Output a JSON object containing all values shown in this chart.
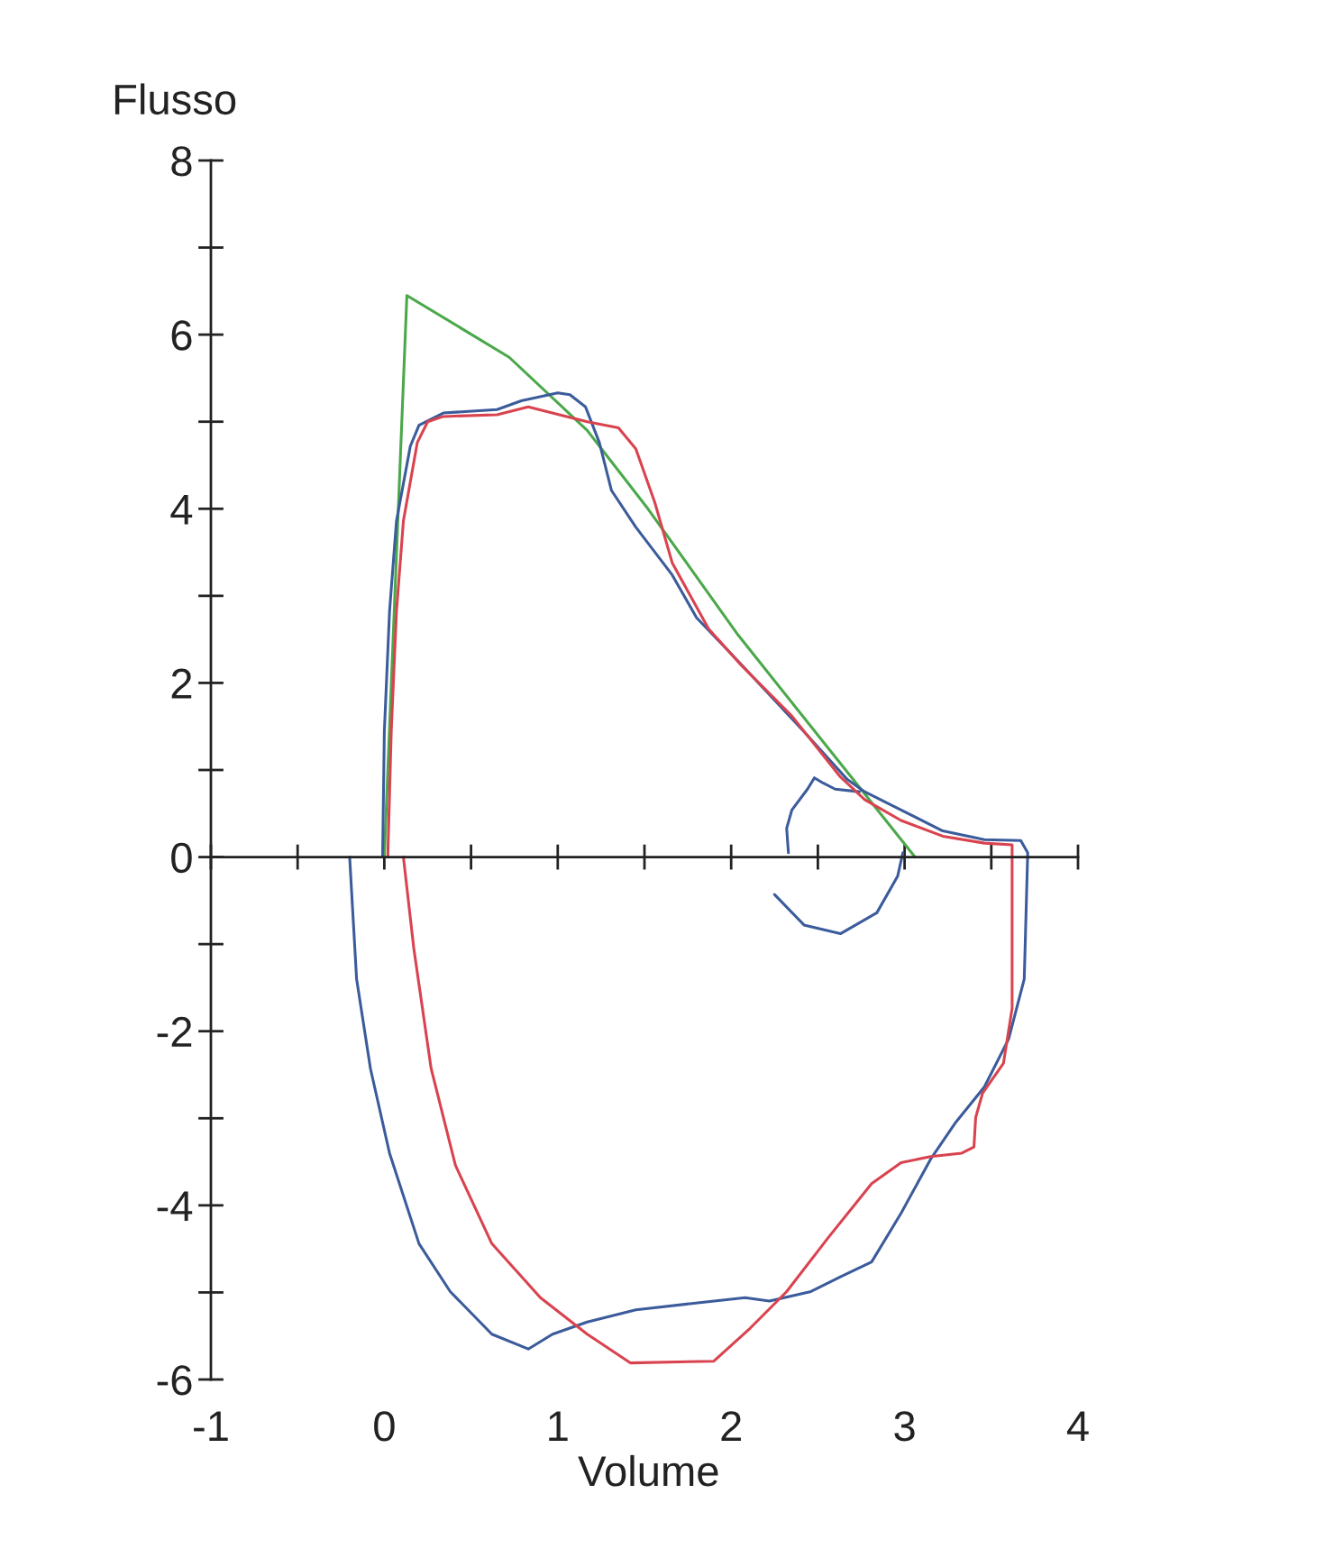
{
  "chart_data": {
    "type": "line",
    "xlabel": "Volume",
    "ylabel": "Flusso",
    "xlim": [
      -1,
      4
    ],
    "ylim": [
      -6,
      8
    ],
    "xticks": [
      -1,
      {
        "value": -0.5,
        "label": null
      },
      0,
      {
        "value": 0.5,
        "label": null
      },
      1,
      {
        "value": 1.5,
        "label": null
      },
      2,
      {
        "value": 2.5,
        "label": null
      },
      3,
      {
        "value": 3.5,
        "label": null
      },
      4
    ],
    "yticks": [
      -6,
      {
        "value": -5,
        "label": null
      },
      -4,
      {
        "value": -3,
        "label": null
      },
      -2,
      {
        "value": -1,
        "label": null
      },
      0,
      {
        "value": 1,
        "label": null
      },
      2,
      {
        "value": 3,
        "label": null
      },
      4,
      {
        "value": 5,
        "label": null
      },
      6,
      {
        "value": 7,
        "label": null
      },
      8
    ],
    "series": [
      {
        "color": "#4aa84a",
        "x": [
          0.0,
          0.13,
          0.72,
          1.17,
          1.52,
          2.04,
          3.06
        ],
        "values": [
          0,
          6.45,
          5.74,
          4.9,
          4.0,
          2.55,
          0
        ]
      },
      {
        "color": "#3b5b9b",
        "x": [
          -0.01,
          0.0,
          0.03,
          0.07,
          0.15,
          0.2,
          0.34,
          0.65,
          0.79,
          1.0,
          1.07,
          1.16,
          1.24,
          1.31,
          1.45,
          1.66,
          1.8,
          2.04,
          2.42,
          2.67,
          2.77,
          2.98,
          3.22,
          3.46,
          3.67,
          3.71,
          3.69,
          3.6,
          3.46,
          3.29,
          3.15,
          2.98,
          2.81,
          2.63,
          2.46,
          2.22,
          2.08,
          1.76,
          1.45,
          1.17,
          0.97,
          0.83,
          0.62,
          0.38,
          0.2,
          0.03,
          -0.08,
          -0.16,
          -0.2
        ],
        "values": [
          0,
          1.44,
          2.82,
          3.86,
          4.72,
          4.96,
          5.1,
          5.14,
          5.24,
          5.33,
          5.31,
          5.17,
          4.76,
          4.21,
          3.79,
          3.24,
          2.75,
          2.25,
          1.44,
          0.89,
          0.75,
          0.54,
          0.3,
          0.2,
          0.19,
          0.05,
          -1.4,
          -2.09,
          -2.64,
          -3.06,
          -3.47,
          -4.09,
          -4.65,
          -4.82,
          -4.99,
          -5.1,
          -5.06,
          -5.13,
          -5.2,
          -5.34,
          -5.48,
          -5.65,
          -5.48,
          -4.99,
          -4.44,
          -3.4,
          -2.43,
          -1.4,
          0
        ]
      },
      {
        "color": "#3b5b9b",
        "x": [
          2.25,
          2.42,
          2.63,
          2.84,
          2.96,
          2.99
        ],
        "values": [
          -0.43,
          -0.78,
          -0.88,
          -0.64,
          -0.22,
          0.05
        ]
      },
      {
        "color": "#3b5b9b",
        "x": [
          2.33,
          2.32,
          2.35,
          2.44,
          2.48,
          2.53,
          2.6,
          2.74
        ],
        "values": [
          0.05,
          0.33,
          0.54,
          0.78,
          0.91,
          0.85,
          0.78,
          0.75
        ]
      },
      {
        "color": "#d9434f",
        "x": [
          0.02,
          0.04,
          0.07,
          0.11,
          0.19,
          0.25,
          0.34,
          0.65,
          0.83,
          1.03,
          1.17,
          1.35,
          1.45,
          1.56,
          1.66,
          1.87,
          2.06,
          2.35,
          2.63,
          2.77,
          2.98,
          3.22,
          3.46,
          3.62,
          3.62,
          3.57,
          3.45,
          3.41,
          3.4,
          3.33,
          3.15,
          2.98,
          2.81,
          2.56,
          2.32,
          2.11,
          1.9,
          1.42,
          1.17,
          0.9,
          0.62,
          0.41,
          0.27,
          0.17,
          0.11
        ],
        "values": [
          0,
          1.44,
          2.82,
          3.86,
          4.76,
          5.0,
          5.06,
          5.08,
          5.17,
          5.07,
          5.0,
          4.93,
          4.69,
          4.07,
          3.38,
          2.62,
          2.2,
          1.62,
          0.92,
          0.66,
          0.42,
          0.24,
          0.16,
          0.14,
          -1.74,
          -2.37,
          -2.71,
          -2.99,
          -3.33,
          -3.4,
          -3.44,
          -3.51,
          -3.75,
          -4.37,
          -4.99,
          -5.41,
          -5.79,
          -5.81,
          -5.48,
          -5.06,
          -4.44,
          -3.54,
          -2.43,
          -1.05,
          0
        ]
      }
    ]
  }
}
